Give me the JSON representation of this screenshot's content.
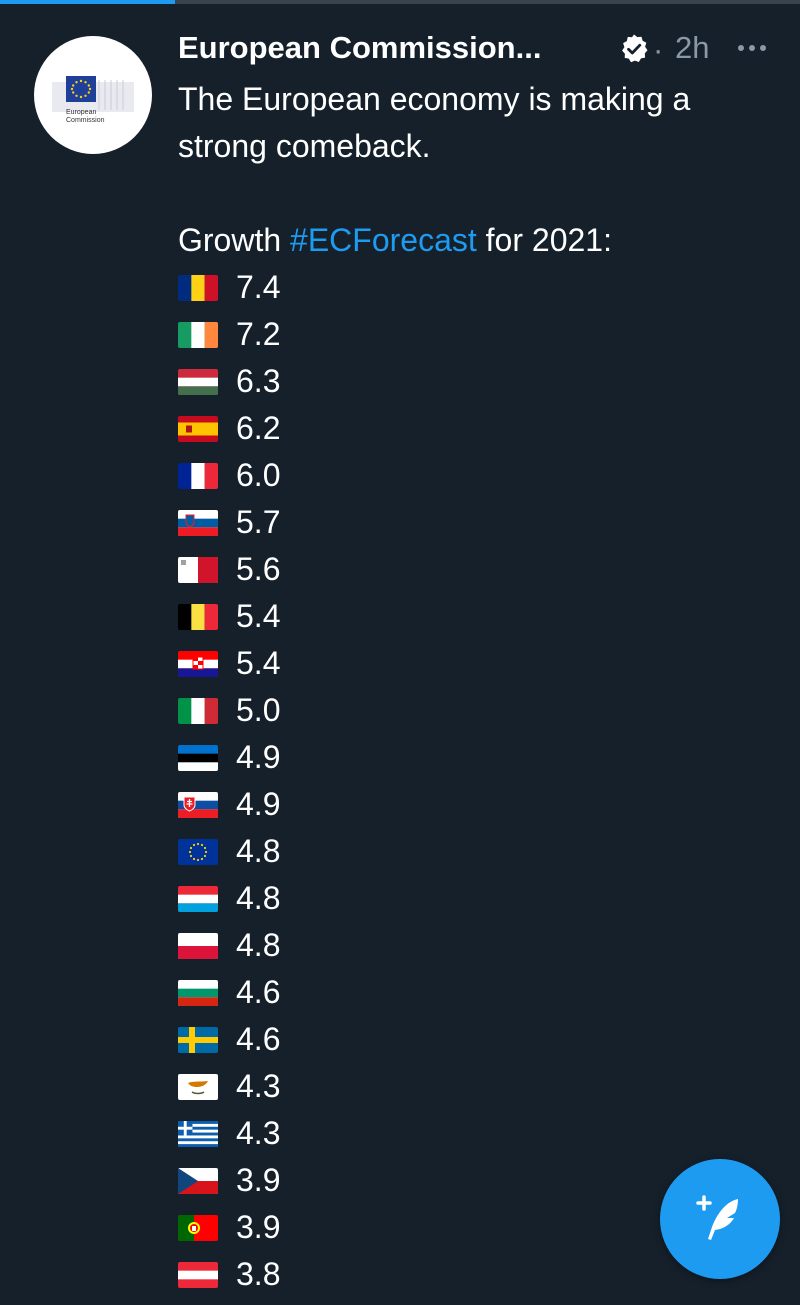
{
  "tweet": {
    "author": "European Commission...",
    "timestamp": "2h",
    "separator": "·",
    "avatar_text_1": "European",
    "avatar_text_2": "Commission",
    "line1": "The European economy is making a",
    "line2": "strong comeback.",
    "growth_prefix": "Growth ",
    "hashtag": "#ECForecast",
    "growth_suffix": " for 2021:",
    "items": [
      {
        "flag": "romania",
        "value": "7.4"
      },
      {
        "flag": "ireland",
        "value": "7.2"
      },
      {
        "flag": "hungary",
        "value": "6.3"
      },
      {
        "flag": "spain",
        "value": "6.2"
      },
      {
        "flag": "france",
        "value": "6.0"
      },
      {
        "flag": "slovenia",
        "value": "5.7"
      },
      {
        "flag": "malta",
        "value": "5.6"
      },
      {
        "flag": "belgium",
        "value": "5.4"
      },
      {
        "flag": "croatia",
        "value": "5.4"
      },
      {
        "flag": "italy",
        "value": "5.0"
      },
      {
        "flag": "estonia",
        "value": "4.9"
      },
      {
        "flag": "slovakia",
        "value": "4.9"
      },
      {
        "flag": "european-union",
        "value": "4.8"
      },
      {
        "flag": "luxembourg",
        "value": "4.8"
      },
      {
        "flag": "poland",
        "value": "4.8"
      },
      {
        "flag": "bulgaria",
        "value": "4.6"
      },
      {
        "flag": "sweden",
        "value": "4.6"
      },
      {
        "flag": "cyprus",
        "value": "4.3"
      },
      {
        "flag": "greece",
        "value": "4.3"
      },
      {
        "flag": "czechia",
        "value": "3.9"
      },
      {
        "flag": "portugal",
        "value": "3.9"
      },
      {
        "flag": "austria",
        "value": "3.8"
      }
    ]
  },
  "icons": {
    "verified": "verified-badge-icon",
    "more": "more-options-icon",
    "compose": "compose-tweet-icon"
  },
  "colors": {
    "background": "#15202b",
    "accent": "#1d9bf0",
    "secondary_text": "#8b98a5"
  }
}
